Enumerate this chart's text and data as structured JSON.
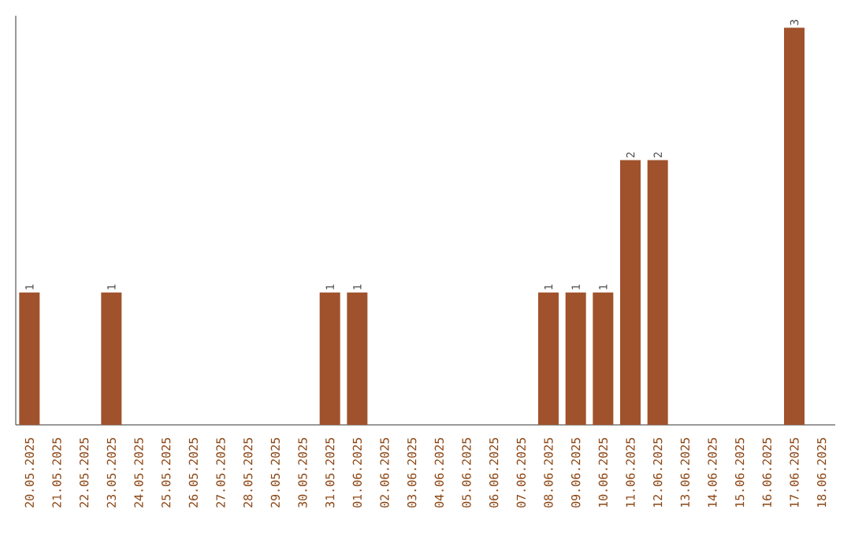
{
  "chart_data": {
    "type": "bar",
    "categories": [
      "20.05.2025",
      "21.05.2025",
      "22.05.2025",
      "23.05.2025",
      "24.05.2025",
      "25.05.2025",
      "26.05.2025",
      "27.05.2025",
      "28.05.2025",
      "29.05.2025",
      "30.05.2025",
      "31.05.2025",
      "01.06.2025",
      "02.06.2025",
      "03.06.2025",
      "04.06.2025",
      "05.06.2025",
      "06.06.2025",
      "07.06.2025",
      "08.06.2025",
      "09.06.2025",
      "10.06.2025",
      "11.06.2025",
      "12.06.2025",
      "13.06.2025",
      "14.06.2025",
      "15.06.2025",
      "16.06.2025",
      "17.06.2025",
      "18.06.2025"
    ],
    "values": [
      1,
      0,
      0,
      1,
      0,
      0,
      0,
      0,
      0,
      0,
      0,
      1,
      1,
      0,
      0,
      0,
      0,
      0,
      0,
      1,
      1,
      1,
      2,
      2,
      0,
      0,
      0,
      0,
      3,
      0
    ],
    "value_labels": [
      "1",
      null,
      null,
      "1",
      null,
      null,
      null,
      null,
      null,
      null,
      null,
      "1",
      "1",
      null,
      null,
      null,
      null,
      null,
      null,
      "1",
      "1",
      "1",
      "2",
      "2",
      null,
      null,
      null,
      null,
      "3",
      null
    ],
    "color": "#a0522d"
  }
}
